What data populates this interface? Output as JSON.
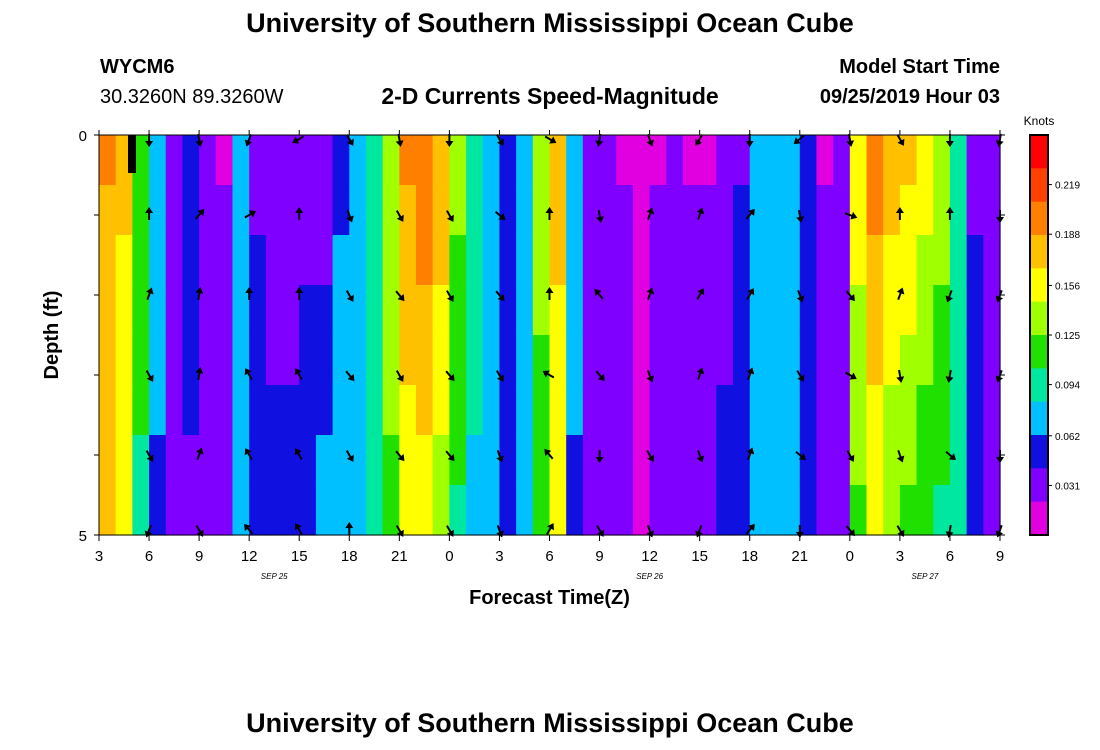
{
  "header": {
    "title": "University of Southern Mississippi Ocean Cube",
    "station": "WYCM6",
    "coords": "30.3260N 89.3260W",
    "subtitle": "2-D Currents Speed-Magnitude",
    "model_start_label": "Model Start Time",
    "model_start_value": "09/25/2019 Hour 03"
  },
  "footer": {
    "title": "University of Southern Mississippi Ocean Cube"
  },
  "chart_data": {
    "type": "heatmap",
    "title": "2-D Currents Speed-Magnitude",
    "xlabel": "Forecast Time(Z)",
    "ylabel": "Depth (ft)",
    "x_tick_labels": [
      "3",
      "6",
      "9",
      "12",
      "15",
      "18",
      "21",
      "0",
      "3",
      "6",
      "9",
      "12",
      "15",
      "18",
      "21",
      "0",
      "3",
      "6",
      "9"
    ],
    "date_labels": [
      {
        "label": "SEP 25",
        "at_tick": 3.5
      },
      {
        "label": "SEP 26",
        "at_tick": 11
      },
      {
        "label": "SEP 27",
        "at_tick": 16.5
      }
    ],
    "y_tick_labels": [
      "0",
      "5"
    ],
    "ylim": [
      0,
      5
    ],
    "colorbar": {
      "unit_label": "Knots",
      "ticks": [
        "0.219",
        "0.188",
        "0.156",
        "0.125",
        "0.094",
        "0.062",
        "0.031"
      ],
      "min": 0.0,
      "max": 0.25,
      "colors": [
        "#e000e0",
        "#8000ff",
        "#1010e0",
        "#00c0ff",
        "#00e8a0",
        "#20e000",
        "#a0ff00",
        "#ffff00",
        "#ffc000",
        "#ff8000",
        "#ff4000",
        "#ff0000"
      ]
    },
    "n_columns": 54,
    "speed_profile_top": [
      0.19,
      0.17,
      0.12,
      0.07,
      0.03,
      0.05,
      0.03,
      0.02,
      0.07,
      0.04,
      0.03,
      0.03,
      0.03,
      0.03,
      0.06,
      0.08,
      0.1,
      0.14,
      0.19,
      0.2,
      0.18,
      0.13,
      0.1,
      0.08,
      0.06,
      0.07,
      0.13,
      0.17,
      0.07,
      0.04,
      0.03,
      0.02,
      0.01,
      0.02,
      0.03,
      0.02,
      0.02,
      0.03,
      0.04,
      0.07,
      0.08,
      0.07,
      0.06,
      0.02,
      0.03,
      0.16,
      0.2,
      0.18,
      0.17,
      0.16,
      0.14,
      0.1,
      0.04,
      0.03
    ],
    "speed_profile_bottom": [
      0.17,
      0.15,
      0.1,
      0.06,
      0.03,
      0.04,
      0.03,
      0.04,
      0.07,
      0.05,
      0.05,
      0.05,
      0.06,
      0.07,
      0.07,
      0.08,
      0.1,
      0.12,
      0.15,
      0.16,
      0.14,
      0.1,
      0.08,
      0.07,
      0.06,
      0.07,
      0.12,
      0.16,
      0.06,
      0.04,
      0.03,
      0.03,
      0.02,
      0.03,
      0.03,
      0.03,
      0.04,
      0.05,
      0.06,
      0.07,
      0.08,
      0.07,
      0.06,
      0.04,
      0.04,
      0.12,
      0.15,
      0.13,
      0.12,
      0.11,
      0.1,
      0.09,
      0.05,
      0.04
    ],
    "arrow_columns": [
      3,
      6,
      9,
      12,
      15,
      18,
      21,
      24,
      27,
      30,
      33,
      36,
      39,
      42,
      45,
      48,
      51,
      54
    ],
    "arrow_depth_levels": [
      0,
      1,
      2,
      3,
      4,
      5
    ],
    "arrow_directions_deg": [
      [
        180,
        170,
        200,
        240,
        150,
        170,
        180,
        150,
        120,
        190,
        160,
        210,
        180,
        230,
        170,
        150,
        180,
        190
      ],
      [
        0,
        40,
        60,
        0,
        160,
        150,
        150,
        130,
        0,
        170,
        20,
        20,
        40,
        170,
        110,
        0,
        0,
        180
      ],
      [
        20,
        10,
        0,
        0,
        150,
        140,
        150,
        140,
        0,
        320,
        20,
        30,
        30,
        160,
        140,
        20,
        200,
        200
      ],
      [
        150,
        10,
        330,
        330,
        140,
        150,
        140,
        150,
        300,
        140,
        160,
        20,
        20,
        150,
        120,
        170,
        190,
        200
      ],
      [
        150,
        20,
        330,
        330,
        150,
        140,
        140,
        160,
        320,
        180,
        150,
        160,
        20,
        130,
        150,
        160,
        130,
        180
      ],
      [
        200,
        150,
        320,
        330,
        0,
        150,
        150,
        160,
        30,
        150,
        160,
        200,
        40,
        180,
        140,
        150,
        190,
        200
      ]
    ]
  }
}
